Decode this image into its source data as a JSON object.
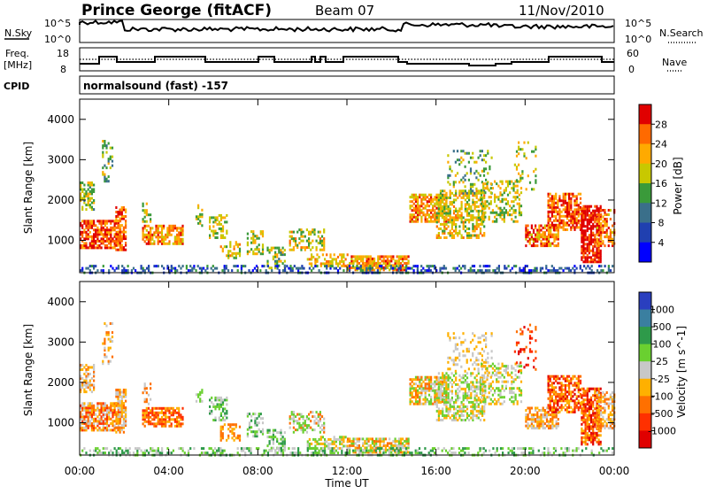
{
  "header": {
    "site": "Prince George (fitACF)",
    "beam": "Beam 07",
    "date": "11/Nov/2010"
  },
  "panels": {
    "nsky_label": "N.Sky",
    "nsearch_label": "N.Search",
    "noise_ticks_left": [
      "10^5",
      "10^0"
    ],
    "noise_ticks_right": [
      "10^5",
      "10^0"
    ],
    "freq_label_1": "Freq.",
    "freq_label_2": "[MHz]",
    "freq_ticks": [
      "18",
      "8"
    ],
    "nave_label": "Nave",
    "nave_ticks": [
      "60",
      "0"
    ],
    "cpid_label": "CPID",
    "cpid_value": "normalsound (fast) -157"
  },
  "chart_data": [
    {
      "type": "heatmap",
      "parameter": "Power",
      "ylabel": "Slant Range [km]",
      "xlabel": "Time UT",
      "yticks": [
        "4000",
        "3000",
        "2000",
        "1000"
      ],
      "ylim": [
        200,
        4500
      ],
      "xticks": [
        "00:00",
        "04:00",
        "08:00",
        "12:00",
        "16:00",
        "20:00",
        "00:00"
      ],
      "colorbar_label": "Power [dB]",
      "colorbar_ticks": [
        "28",
        "24",
        "20",
        "16",
        "12",
        "8",
        "4"
      ],
      "colorbar_colors": [
        "#e00000",
        "#ff6a00",
        "#ffaa00",
        "#c8c800",
        "#3a9a3a",
        "#3a6f8a",
        "#2040b0",
        "#0000ff"
      ]
    },
    {
      "type": "heatmap",
      "parameter": "Velocity",
      "ylabel": "Slant Range [km]",
      "xlabel": "Time UT",
      "yticks": [
        "4000",
        "3000",
        "2000",
        "1000"
      ],
      "ylim": [
        200,
        4500
      ],
      "xticks": [
        "00:00",
        "04:00",
        "08:00",
        "12:00",
        "16:00",
        "20:00",
        "00:00"
      ],
      "colorbar_label": "Velocity [m s^-1]",
      "colorbar_ticks": [
        "1000",
        "500",
        "100",
        "25",
        "-25",
        "-100",
        "-500",
        "-1000"
      ],
      "colorbar_colors": [
        "#2a3fbf",
        "#3a7fa0",
        "#2e9a4a",
        "#6ad030",
        "#c8c8c8",
        "#ffb000",
        "#ff7000",
        "#ff3000",
        "#e00000"
      ]
    }
  ],
  "footer": {
    "xlabel": "Time UT"
  }
}
